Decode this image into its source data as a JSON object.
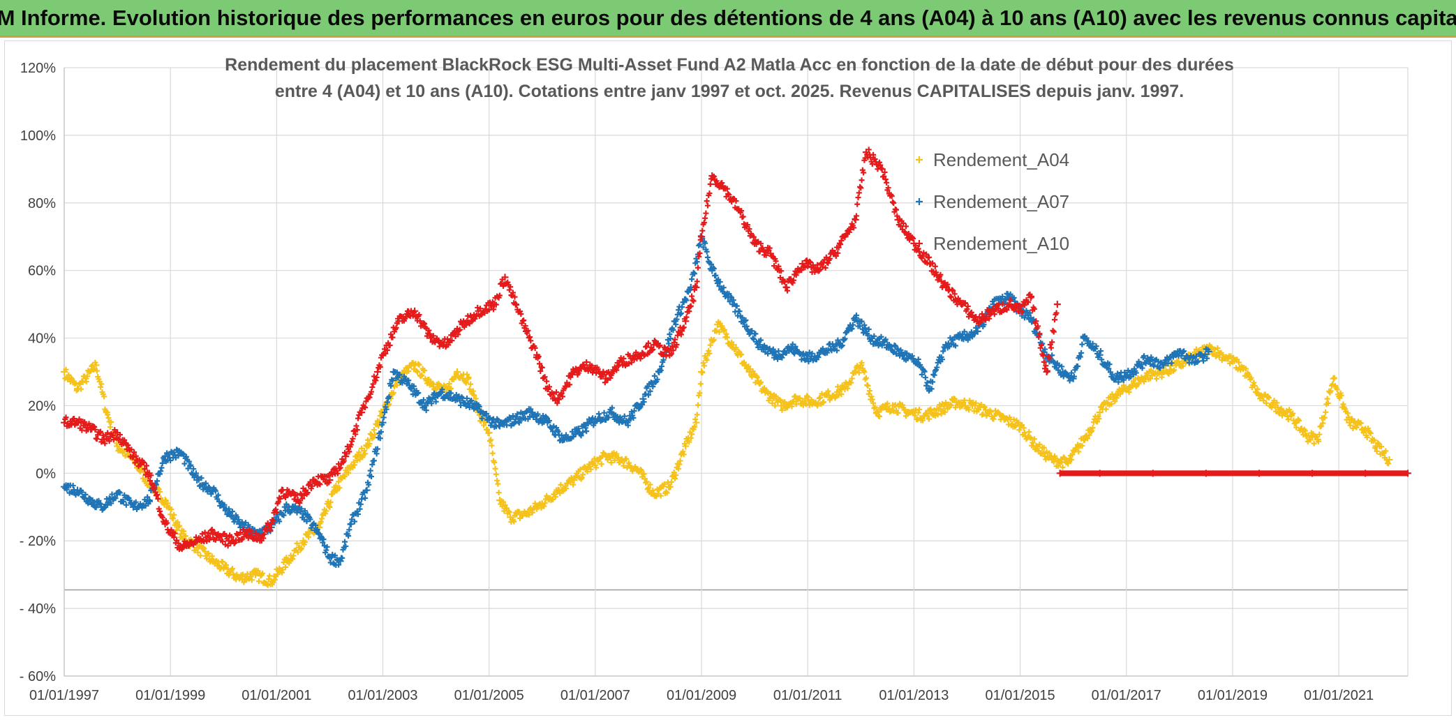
{
  "banner": {
    "title": "ADAM Informe. Evolution historique des performances en euros pour des détentions de 4 ans (A04) à 10 ans (A10) avec les revenus connus capitalisés"
  },
  "chart_data": {
    "type": "scatter",
    "title_lines": [
      "Rendement du placement BlackRock ESG Multi-Asset Fund A2 Matla Acc en fonction de la date de début pour des durées",
      "entre 4 (A04) et 10 ans (A10). Cotations entre janv 1997 et oct. 2025. Revenus CAPITALISES depuis janv. 1997."
    ],
    "xlabel": "",
    "ylabel": "",
    "xlim": [
      1997.0,
      2022.3
    ],
    "ylim": [
      -60,
      120
    ],
    "grid": true,
    "legend_position": "top-right",
    "x_tick_labels": [
      "01/01/1997",
      "01/01/1999",
      "01/01/2001",
      "01/01/2003",
      "01/01/2005",
      "01/01/2007",
      "01/01/2009",
      "01/01/2011",
      "01/01/2013",
      "01/01/2015",
      "01/01/2017",
      "01/01/2019",
      "01/01/2021"
    ],
    "x_tick_values": [
      1997,
      1999,
      2001,
      2003,
      2005,
      2007,
      2009,
      2011,
      2013,
      2015,
      2017,
      2019,
      2021
    ],
    "y_tick_labels": [
      "120%",
      "100%",
      "80%",
      "60%",
      "40%",
      "20%",
      "0%",
      "- 20%",
      "- 40%",
      "- 60%"
    ],
    "y_tick_values": [
      120,
      100,
      80,
      60,
      40,
      20,
      0,
      -20,
      -40,
      -60
    ],
    "series": [
      {
        "name": "Rendement_A04",
        "color": "#f5c21b",
        "x": [
          1997.0,
          1997.25,
          1997.4,
          1997.6,
          1997.8,
          1998.0,
          1998.3,
          1998.6,
          1998.9,
          1999.2,
          1999.5,
          1999.8,
          2000.0,
          2000.3,
          2000.6,
          2000.9,
          2001.2,
          2001.5,
          2001.8,
          2002.1,
          2002.4,
          2002.7,
          2003.0,
          2003.3,
          2003.6,
          2003.9,
          2004.2,
          2004.4,
          2004.6,
          2004.8,
          2005.0,
          2005.2,
          2005.4,
          2005.7,
          2006.0,
          2006.3,
          2006.6,
          2006.9,
          2007.2,
          2007.5,
          2007.8,
          2008.1,
          2008.4,
          2008.7,
          2008.9,
          2009.0,
          2009.3,
          2009.6,
          2009.9,
          2010.2,
          2010.5,
          2010.8,
          2011.1,
          2011.4,
          2011.7,
          2011.9,
          2012.0,
          2012.3,
          2012.6,
          2012.9,
          2013.2,
          2013.5,
          2013.8,
          2014.1,
          2014.4,
          2014.7,
          2015.0,
          2015.3,
          2015.6,
          2015.9,
          2016.2,
          2016.5,
          2016.8,
          2017.1,
          2017.4,
          2017.7,
          2018.0,
          2018.3,
          2018.6,
          2018.9,
          2019.2,
          2019.5,
          2019.8,
          2020.1,
          2020.4,
          2020.6,
          2020.9,
          2021.2,
          2021.5,
          2021.7,
          2021.95
        ],
        "y": [
          30,
          25,
          28,
          32,
          18,
          8,
          4,
          -3,
          -8,
          -18,
          -22,
          -26,
          -28,
          -31,
          -30,
          -32,
          -26,
          -20,
          -16,
          -5,
          2,
          8,
          18,
          28,
          32,
          27,
          24,
          30,
          28,
          18,
          12,
          -8,
          -13,
          -12,
          -9,
          -5,
          -2,
          2,
          5,
          4,
          1,
          -6,
          -4,
          8,
          15,
          30,
          44,
          38,
          30,
          24,
          20,
          22,
          21,
          23,
          25,
          30,
          32,
          18,
          20,
          18,
          17,
          19,
          21,
          20,
          18,
          16,
          14,
          8,
          4,
          3,
          10,
          18,
          23,
          26,
          29,
          30,
          32,
          35,
          37,
          34,
          31,
          23,
          20,
          17,
          11,
          10,
          28,
          15,
          13,
          8,
          4
        ]
      },
      {
        "name": "Rendement_A07",
        "color": "#1f74b6",
        "x": [
          1997.0,
          1997.25,
          1997.5,
          1997.7,
          1998.0,
          1998.3,
          1998.6,
          1998.9,
          1999.2,
          1999.5,
          1999.8,
          2000.0,
          2000.3,
          2000.6,
          2000.9,
          2001.2,
          2001.5,
          2001.8,
          2002.0,
          2002.2,
          2002.4,
          2002.7,
          2003.0,
          2003.2,
          2003.5,
          2003.8,
          2004.1,
          2004.4,
          2004.7,
          2005.0,
          2005.2,
          2005.5,
          2005.8,
          2006.1,
          2006.4,
          2006.7,
          2007.0,
          2007.3,
          2007.6,
          2007.9,
          2008.2,
          2008.5,
          2008.8,
          2009.0,
          2009.2,
          2009.5,
          2009.8,
          2010.1,
          2010.4,
          2010.7,
          2011.0,
          2011.3,
          2011.6,
          2011.9,
          2012.2,
          2012.5,
          2012.8,
          2013.1,
          2013.3,
          2013.6,
          2013.9,
          2014.2,
          2014.5,
          2014.8,
          2015.0,
          2015.2,
          2015.5,
          2015.8,
          2016.0,
          2016.2,
          2016.5,
          2016.8,
          2017.1,
          2017.4,
          2017.7,
          2018.0,
          2018.3,
          2018.55
        ],
        "y": [
          -4,
          -5,
          -8,
          -10,
          -6,
          -10,
          -8,
          5,
          6,
          -2,
          -5,
          -10,
          -15,
          -18,
          -16,
          -10,
          -12,
          -18,
          -25,
          -26,
          -15,
          -5,
          15,
          30,
          26,
          20,
          24,
          22,
          20,
          16,
          14,
          16,
          18,
          15,
          10,
          12,
          16,
          18,
          15,
          22,
          30,
          45,
          55,
          70,
          60,
          52,
          45,
          38,
          35,
          37,
          34,
          36,
          38,
          46,
          40,
          38,
          35,
          32,
          25,
          38,
          40,
          42,
          50,
          52,
          48,
          46,
          35,
          30,
          28,
          40,
          35,
          28,
          30,
          34,
          32,
          36,
          33,
          36
        ]
      },
      {
        "name": "Rendement_A10",
        "color": "#e51a1a",
        "x": [
          1997.0,
          1997.25,
          1997.5,
          1997.75,
          1998.0,
          1998.3,
          1998.6,
          1998.9,
          1999.2,
          1999.5,
          1999.8,
          2000.1,
          2000.4,
          2000.7,
          2000.9,
          2001.1,
          2001.4,
          2001.7,
          2002.0,
          2002.3,
          2002.6,
          2002.9,
          2003.0,
          2003.3,
          2003.6,
          2003.9,
          2004.2,
          2004.5,
          2004.8,
          2005.1,
          2005.3,
          2005.5,
          2005.7,
          2005.9,
          2006.1,
          2006.3,
          2006.6,
          2006.9,
          2007.2,
          2007.5,
          2007.8,
          2008.1,
          2008.4,
          2008.7,
          2008.9,
          2009.0,
          2009.2,
          2009.4,
          2009.7,
          2010.0,
          2010.3,
          2010.6,
          2010.9,
          2011.2,
          2011.5,
          2011.7,
          2011.9,
          2012.1,
          2012.4,
          2012.7,
          2013.0,
          2013.3,
          2013.6,
          2013.9,
          2014.2,
          2014.5,
          2014.8,
          2015.0,
          2015.2,
          2015.5,
          2015.7
        ],
        "y": [
          15,
          15,
          13,
          10,
          12,
          5,
          0,
          -15,
          -22,
          -20,
          -18,
          -20,
          -18,
          -19,
          -15,
          -5,
          -8,
          -2,
          -2,
          5,
          18,
          30,
          35,
          45,
          48,
          40,
          38,
          44,
          48,
          50,
          58,
          50,
          42,
          35,
          25,
          22,
          30,
          32,
          28,
          33,
          35,
          38,
          35,
          45,
          55,
          70,
          88,
          85,
          78,
          68,
          65,
          55,
          62,
          60,
          65,
          70,
          75,
          95,
          90,
          75,
          68,
          62,
          55,
          50,
          45,
          48,
          50,
          48,
          52,
          30,
          50
        ]
      },
      {
        "name": "",
        "color": "#e51a1a",
        "x": [
          2015.75,
          2016.5,
          2017.5,
          2018.5,
          2019.5,
          2020.5,
          2021.5,
          2022.3
        ],
        "y": [
          0,
          0,
          0,
          0,
          0,
          0,
          0,
          0
        ]
      }
    ]
  }
}
